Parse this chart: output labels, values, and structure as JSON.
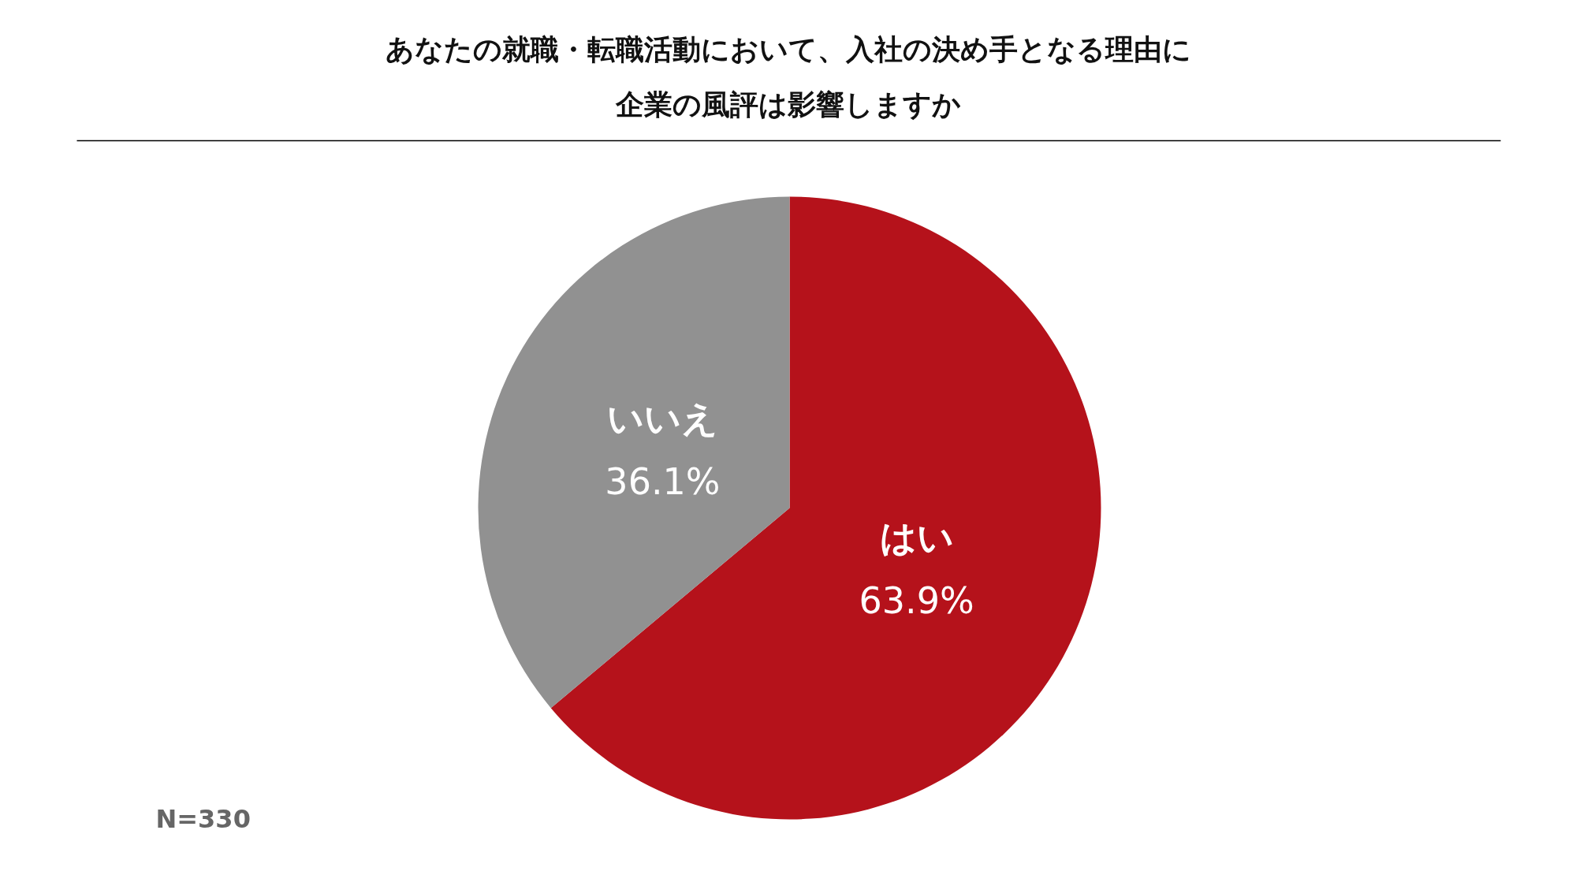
{
  "chart_data": {
    "type": "pie",
    "title": "あなたの就職・転職活動において、入社の決め手となる理由に企業の風評は影響しますか",
    "categories": [
      "はい",
      "いいえ"
    ],
    "values": [
      63.9,
      36.1
    ],
    "colors": [
      "#b5121b",
      "#919191"
    ],
    "value_labels": [
      "63.9%",
      "36.1%"
    ],
    "annotations": [
      "N=330"
    ],
    "legend": false
  }
}
